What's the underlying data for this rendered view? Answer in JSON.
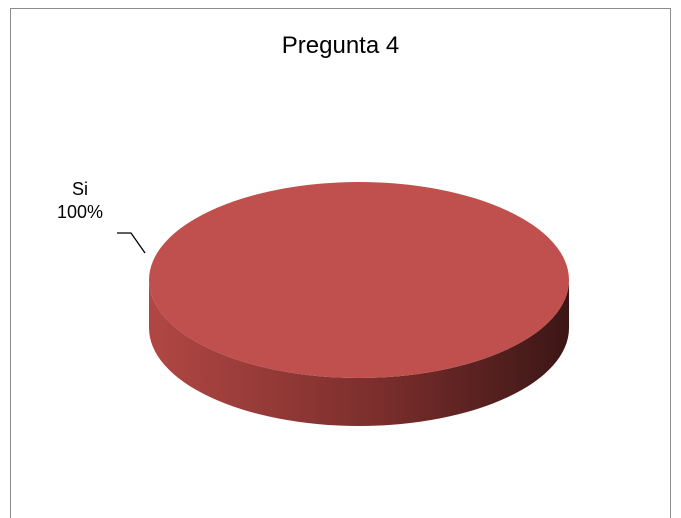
{
  "chart_data": {
    "type": "pie",
    "title": "Pregunta 4",
    "categories": [
      "Si"
    ],
    "values": [
      100
    ],
    "value_labels": [
      "100%"
    ],
    "colors": {
      "slice": "#c0504d",
      "side_light": "#b14744",
      "side_dark": "#3c1616",
      "leader": "#000000"
    }
  }
}
